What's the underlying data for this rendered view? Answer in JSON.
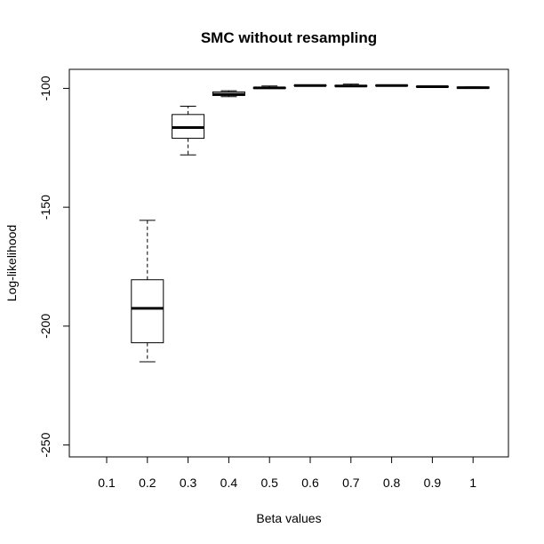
{
  "chart_data": {
    "type": "boxplot",
    "title": "SMC without resampling",
    "xlabel": "Beta values",
    "ylabel": "Log-likelihood",
    "ylim": [
      -255,
      -92
    ],
    "yticks": [
      -100,
      -150,
      -200,
      -250
    ],
    "ytick_labels": [
      "-100",
      "-150",
      "-200",
      "-250"
    ],
    "categories": [
      "0.1",
      "0.2",
      "0.3",
      "0.4",
      "0.5",
      "0.6",
      "0.7",
      "0.8",
      "0.9",
      "1"
    ],
    "boxes": [
      {
        "category": "0.1",
        "empty": true
      },
      {
        "category": "0.2",
        "whisker_low": -215,
        "q1": -207,
        "median": -192.5,
        "q3": -180.5,
        "whisker_high": -155.5
      },
      {
        "category": "0.3",
        "whisker_low": -128,
        "q1": -121,
        "median": -116.5,
        "q3": -111,
        "whisker_high": -107.5
      },
      {
        "category": "0.4",
        "whisker_low": -103.5,
        "q1": -103,
        "median": -102.5,
        "q3": -101.5,
        "whisker_high": -101
      },
      {
        "category": "0.5",
        "whisker_low": -100,
        "q1": -100,
        "median": -99.8,
        "q3": -99.6,
        "whisker_high": -99
      },
      {
        "category": "0.6",
        "whisker_low": -99,
        "q1": -98.9,
        "median": -98.8,
        "q3": -98.7,
        "whisker_high": -98.6
      },
      {
        "category": "0.7",
        "whisker_low": -99.2,
        "q1": -99.1,
        "median": -99,
        "q3": -98.8,
        "whisker_high": -98.2
      },
      {
        "category": "0.8",
        "whisker_low": -99,
        "q1": -98.9,
        "median": -98.8,
        "q3": -98.7,
        "whisker_high": -98.6
      },
      {
        "category": "0.9",
        "whisker_low": -99.5,
        "q1": -99.4,
        "median": -99.3,
        "q3": -99.2,
        "whisker_high": -99.1
      },
      {
        "category": "1",
        "whisker_low": -100,
        "q1": -99.9,
        "median": -99.7,
        "q3": -99.5,
        "whisker_high": -99.4
      }
    ]
  }
}
